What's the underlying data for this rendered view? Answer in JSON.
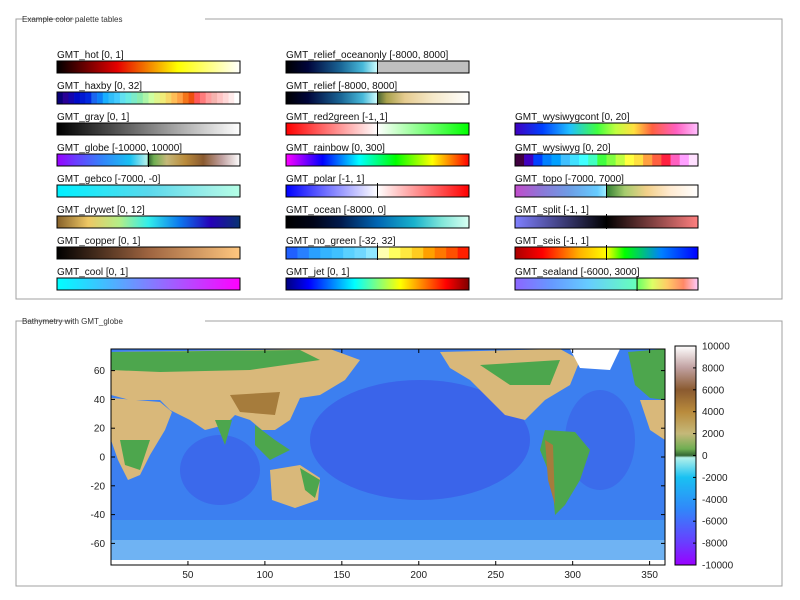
{
  "palettes_panel": {
    "title": "Example color palette tables",
    "palettes": [
      {
        "name": "GMT_hot",
        "label": "GMT_hot [0, 1]",
        "column": 0,
        "row": 0,
        "stops": [
          [
            0,
            "#000000"
          ],
          [
            0.33,
            "#e60000"
          ],
          [
            0.66,
            "#ffff00"
          ],
          [
            1,
            "#ffffff"
          ]
        ]
      },
      {
        "name": "GMT_haxby",
        "label": "GMT_haxby [0, 32]",
        "column": 0,
        "row": 1,
        "discrete": true,
        "colors": [
          "#0a0079",
          "#280096",
          "#1405af",
          "#000ac8",
          "#0019d4",
          "#0028e0",
          "#1a66f0",
          "#0d81f8",
          "#19afff",
          "#32befa",
          "#44cbff",
          "#61e1f0",
          "#6aebe1",
          "#7cebc8",
          "#8aecae",
          "#acf5a8",
          "#cdffa2",
          "#dff58d",
          "#f0ec79",
          "#f7d768",
          "#ffbd57",
          "#ffa045",
          "#f4751b",
          "#ee5010",
          "#ff5a5a",
          "#ff7c7c",
          "#ff9e9e",
          "#f5b3ae",
          "#ffc4c4",
          "#ffd7d7",
          "#ffebeb",
          "#ffffff"
        ]
      },
      {
        "name": "GMT_gray",
        "label": "GMT_gray [0, 1]",
        "column": 0,
        "row": 2,
        "stops": [
          [
            0,
            "#000000"
          ],
          [
            1,
            "#ffffff"
          ]
        ]
      },
      {
        "name": "GMT_globe",
        "label": "GMT_globe [-10000, 10000]",
        "column": 0,
        "row": 3,
        "stops": [
          [
            0,
            "#9900ff"
          ],
          [
            0.1,
            "#6a3cff"
          ],
          [
            0.25,
            "#3285fa"
          ],
          [
            0.4,
            "#19c1f2"
          ],
          [
            0.49,
            "#b2f0ea"
          ],
          [
            0.5,
            "#336633"
          ],
          [
            0.53,
            "#6fae52"
          ],
          [
            0.6,
            "#c5b879"
          ],
          [
            0.7,
            "#b98b3c"
          ],
          [
            0.8,
            "#8a5a30"
          ],
          [
            0.9,
            "#c0a0a0"
          ],
          [
            1,
            "#ffffff"
          ]
        ],
        "hinge": 0.5
      },
      {
        "name": "GMT_gebco",
        "label": "GMT_gebco [-7000, -0]",
        "column": 0,
        "row": 4,
        "stops": [
          [
            0,
            "#00f0ff"
          ],
          [
            0.5,
            "#5ad8ec"
          ],
          [
            0.85,
            "#a0f0e8"
          ],
          [
            1,
            "#b4ffe6"
          ]
        ]
      },
      {
        "name": "GMT_drywet",
        "label": "GMT_drywet [0, 12]",
        "column": 0,
        "row": 5,
        "stops": [
          [
            0,
            "#86612a"
          ],
          [
            0.17,
            "#eec764"
          ],
          [
            0.34,
            "#b4ee87"
          ],
          [
            0.5,
            "#32eeeb"
          ],
          [
            0.67,
            "#0c78ee"
          ],
          [
            0.84,
            "#2601b7"
          ],
          [
            1,
            "#083371"
          ]
        ]
      },
      {
        "name": "GMT_copper",
        "label": "GMT_copper [0, 1]",
        "column": 0,
        "row": 6,
        "stops": [
          [
            0,
            "#000000"
          ],
          [
            0.5,
            "#9e6440"
          ],
          [
            1,
            "#ffc77f"
          ]
        ]
      },
      {
        "name": "GMT_cool",
        "label": "GMT_cool [0, 1]",
        "column": 0,
        "row": 7,
        "stops": [
          [
            0,
            "#00ffff"
          ],
          [
            1,
            "#ff00ff"
          ]
        ]
      },
      {
        "name": "GMT_relief_oceanonly",
        "label": "GMT_relief_oceanonly [-8000, 8000]",
        "column": 1,
        "row": 0,
        "stops": [
          [
            0,
            "#000000"
          ],
          [
            0.12,
            "#00053b"
          ],
          [
            0.3,
            "#1a6696"
          ],
          [
            0.42,
            "#48b9d9"
          ],
          [
            0.5,
            "#d2ffff"
          ],
          [
            0.5,
            "#c0c0c0"
          ],
          [
            1,
            "#c0c0c0"
          ]
        ],
        "hinge": 0.5
      },
      {
        "name": "GMT_relief",
        "label": "GMT_relief [-8000, 8000]",
        "column": 1,
        "row": 1,
        "stops": [
          [
            0,
            "#000000"
          ],
          [
            0.12,
            "#00053b"
          ],
          [
            0.3,
            "#1a6696"
          ],
          [
            0.42,
            "#48b9d9"
          ],
          [
            0.5,
            "#d2ffff"
          ],
          [
            0.5,
            "#466434"
          ],
          [
            0.55,
            "#a8a14c"
          ],
          [
            0.65,
            "#e5cb90"
          ],
          [
            0.8,
            "#f5e8c8"
          ],
          [
            1,
            "#ffffff"
          ]
        ],
        "hinge": 0.5
      },
      {
        "name": "GMT_red2green",
        "label": "GMT_red2green [-1, 1]",
        "column": 1,
        "row": 2,
        "stops": [
          [
            0,
            "#ff0000"
          ],
          [
            0.5,
            "#ffffff"
          ],
          [
            1,
            "#00ff00"
          ]
        ],
        "hinge": 0.5
      },
      {
        "name": "GMT_rainbow",
        "label": "GMT_rainbow [0, 300]",
        "column": 1,
        "row": 3,
        "stops": [
          [
            0,
            "#ff00ff"
          ],
          [
            0.2,
            "#0000ff"
          ],
          [
            0.4,
            "#00ffff"
          ],
          [
            0.6,
            "#00ff00"
          ],
          [
            0.8,
            "#ffff00"
          ],
          [
            1,
            "#ff0000"
          ]
        ]
      },
      {
        "name": "GMT_polar",
        "label": "GMT_polar [-1, 1]",
        "column": 1,
        "row": 4,
        "stops": [
          [
            0,
            "#0000ff"
          ],
          [
            0.5,
            "#ffffff"
          ],
          [
            1,
            "#ff0000"
          ]
        ],
        "hinge": 0.5
      },
      {
        "name": "GMT_ocean",
        "label": "GMT_ocean [-8000, 0]",
        "column": 1,
        "row": 5,
        "stops": [
          [
            0,
            "#000000"
          ],
          [
            0.15,
            "#000519"
          ],
          [
            0.3,
            "#001a4d"
          ],
          [
            0.5,
            "#0066b3"
          ],
          [
            0.7,
            "#19b2cc"
          ],
          [
            0.85,
            "#80e6d9"
          ],
          [
            1,
            "#d9fff2"
          ]
        ]
      },
      {
        "name": "GMT_no_green",
        "label": "GMT_no_green [-32, 32]",
        "column": 1,
        "row": 6,
        "discrete": true,
        "hinge": 0.5,
        "colors": [
          "#2060ff",
          "#2880ff",
          "#2aa0ff",
          "#34b4ff",
          "#40c0ff",
          "#5ad0ff",
          "#70d8ff",
          "#90e8ff",
          "#ffffb0",
          "#ffff60",
          "#ffe840",
          "#ffcc20",
          "#ffa000",
          "#ff7800",
          "#ff5000",
          "#ff2000"
        ]
      },
      {
        "name": "GMT_jet",
        "label": "GMT_jet [0, 1]",
        "column": 1,
        "row": 7,
        "stops": [
          [
            0,
            "#00007f"
          ],
          [
            0.125,
            "#0000ff"
          ],
          [
            0.375,
            "#00ffff"
          ],
          [
            0.625,
            "#ffff00"
          ],
          [
            0.875,
            "#ff0000"
          ],
          [
            1,
            "#7f0000"
          ]
        ]
      },
      {
        "name": "GMT_wysiwygcont",
        "label": "GMT_wysiwygcont [0, 20]",
        "column": 2,
        "row": 2,
        "stops": [
          [
            0,
            "#4000c0"
          ],
          [
            0.15,
            "#0040ff"
          ],
          [
            0.3,
            "#20c0ff"
          ],
          [
            0.45,
            "#40ff40"
          ],
          [
            0.55,
            "#c0ff40"
          ],
          [
            0.65,
            "#ffe040"
          ],
          [
            0.75,
            "#ff6040"
          ],
          [
            0.88,
            "#ff60c0"
          ],
          [
            1,
            "#ffc0ff"
          ]
        ]
      },
      {
        "name": "GMT_wysiwyg",
        "label": "GMT_wysiwyg [0, 20]",
        "column": 2,
        "row": 3,
        "discrete": true,
        "colors": [
          "#400040",
          "#4000c0",
          "#0040ff",
          "#0080ff",
          "#00a0ff",
          "#40c0ff",
          "#40e0ff",
          "#40ffff",
          "#40ffc0",
          "#40ff40",
          "#80ff40",
          "#c0ff40",
          "#ffff40",
          "#ffe040",
          "#ffa040",
          "#ff6040",
          "#ff2040",
          "#ff60c0",
          "#ffa0ff",
          "#ffe0ff"
        ]
      },
      {
        "name": "GMT_topo",
        "label": "GMT_topo [-7000, 7000]",
        "column": 2,
        "row": 4,
        "stops": [
          [
            0,
            "#c24ccb"
          ],
          [
            0.15,
            "#8b79d8"
          ],
          [
            0.3,
            "#6d9ee6"
          ],
          [
            0.45,
            "#66ccff"
          ],
          [
            0.5,
            "#a0f0ff"
          ],
          [
            0.5,
            "#338033"
          ],
          [
            0.6,
            "#a6cc6e"
          ],
          [
            0.72,
            "#f2d08a"
          ],
          [
            0.85,
            "#ffebd2"
          ],
          [
            1,
            "#ffffff"
          ]
        ],
        "hinge": 0.5
      },
      {
        "name": "GMT_split",
        "label": "GMT_split [-1, 1]",
        "column": 2,
        "row": 5,
        "stops": [
          [
            0,
            "#8080ff"
          ],
          [
            0.5,
            "#000000"
          ],
          [
            1,
            "#ff8080"
          ]
        ],
        "hinge": 0.5
      },
      {
        "name": "GMT_seis",
        "label": "GMT_seis [-1, 1]",
        "column": 2,
        "row": 6,
        "stops": [
          [
            0,
            "#aa0000"
          ],
          [
            0.15,
            "#ff0000"
          ],
          [
            0.35,
            "#ffb000"
          ],
          [
            0.5,
            "#ffff00"
          ],
          [
            0.6,
            "#00ff00"
          ],
          [
            0.8,
            "#0080ff"
          ],
          [
            1,
            "#0000ff"
          ]
        ],
        "hinge": 0.5
      },
      {
        "name": "GMT_sealand",
        "label": "GMT_sealand [-6000, 3000]",
        "column": 2,
        "row": 7,
        "stops": [
          [
            0,
            "#8c66ff"
          ],
          [
            0.2,
            "#6699ff"
          ],
          [
            0.4,
            "#66ccff"
          ],
          [
            0.66,
            "#66ffbb"
          ],
          [
            0.667,
            "#66ff66"
          ],
          [
            0.75,
            "#ddff66"
          ],
          [
            0.83,
            "#ffcc66"
          ],
          [
            0.92,
            "#ff8866"
          ],
          [
            1,
            "#ffccff"
          ]
        ],
        "hinge": 0.667
      }
    ]
  },
  "map_panel": {
    "title": "Bathymetry with GMT_globe"
  },
  "chart_data": {
    "type": "heatmap",
    "title": "Bathymetry with GMT_globe",
    "xlabel": "",
    "ylabel": "",
    "xlim": [
      0,
      360
    ],
    "ylim": [
      -75,
      75
    ],
    "x_ticks": [
      50,
      100,
      150,
      200,
      250,
      300,
      350
    ],
    "y_ticks": [
      -60,
      -40,
      -20,
      0,
      20,
      40,
      60
    ],
    "colorbar": {
      "palette": "GMT_globe",
      "range": [
        -10000,
        10000
      ],
      "ticks": [
        10000,
        8000,
        6000,
        4000,
        2000,
        0,
        -2000,
        -4000,
        -6000,
        -8000,
        -10000
      ],
      "placement": "right"
    },
    "colors": {
      "deep_ocean": "#3a5ee8",
      "mid_ocean": "#3b8cf0",
      "shelf": "#b8f0f8",
      "lowland": "#4da64d",
      "plateau": "#d9b87a",
      "high": "#a67c3c",
      "ice": "#ffffff"
    }
  }
}
